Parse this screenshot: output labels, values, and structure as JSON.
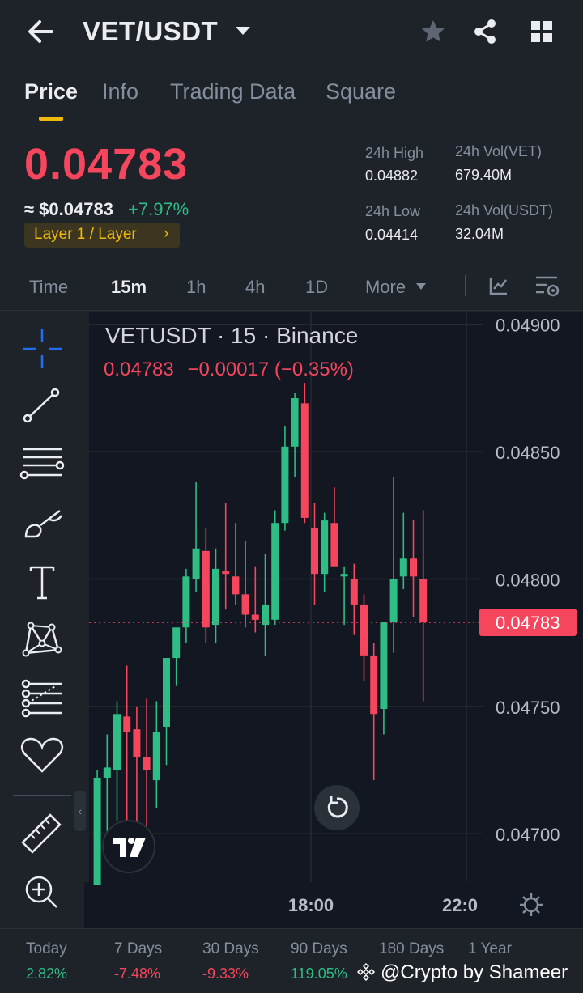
{
  "header": {
    "pair": "VET/USDT",
    "icons": [
      "back-arrow-icon",
      "caret-down-icon",
      "star-icon",
      "share-icon",
      "grid-icon"
    ]
  },
  "tabs": [
    {
      "label": "Price",
      "active": true
    },
    {
      "label": "Info",
      "active": false
    },
    {
      "label": "Trading Data",
      "active": false
    },
    {
      "label": "Square",
      "active": false
    }
  ],
  "ticker": {
    "last_price": "0.04783",
    "usd_price": "≈ $0.04783",
    "change_pct": "+7.97%",
    "tag": "Layer 1 / Layer",
    "tag_chevron": "›",
    "high_label": "24h High",
    "high": "0.04882",
    "low_label": "24h Low",
    "low": "0.04414",
    "vol_base_label": "24h Vol(VET)",
    "vol_base": "679.40M",
    "vol_quote_label": "24h Vol(USDT)",
    "vol_quote": "32.04M"
  },
  "intervals": {
    "items": [
      "Time",
      "15m",
      "1h",
      "4h",
      "1D"
    ],
    "active": "15m",
    "more": "More"
  },
  "chart": {
    "title": "VETUSDT · 15 · Binance",
    "ohlc_last": "0.04783",
    "ohlc_change": "−0.00017 (−0.35%)",
    "current_price_tag": "0.04783",
    "y_labels": [
      "0.04900",
      "0.04850",
      "0.04800",
      "0.04750",
      "0.04700"
    ],
    "x_labels": [
      "18:00",
      "22:0"
    ]
  },
  "chart_data": {
    "type": "candlestick",
    "title": "VETUSDT · 15 · Binance",
    "ylim": [
      0.04681,
      0.04905
    ],
    "y_ticks": [
      0.049,
      0.0485,
      0.048,
      0.0475,
      0.047
    ],
    "x_ticks": [
      "18:00",
      "22:0"
    ],
    "last_price": 0.04783,
    "colors": {
      "up": "#2ebd85",
      "down": "#f6465d"
    },
    "candles": [
      {
        "o": 0.0468,
        "h": 0.04725,
        "l": 0.0468,
        "c": 0.04722
      },
      {
        "o": 0.04722,
        "h": 0.04739,
        "l": 0.04698,
        "c": 0.04726
      },
      {
        "o": 0.04725,
        "h": 0.04752,
        "l": 0.04705,
        "c": 0.04747
      },
      {
        "o": 0.04746,
        "h": 0.04766,
        "l": 0.04694,
        "c": 0.0474
      },
      {
        "o": 0.04741,
        "h": 0.0475,
        "l": 0.04697,
        "c": 0.0473
      },
      {
        "o": 0.0473,
        "h": 0.04753,
        "l": 0.04689,
        "c": 0.04725
      },
      {
        "o": 0.04721,
        "h": 0.04752,
        "l": 0.0471,
        "c": 0.0474
      },
      {
        "o": 0.04742,
        "h": 0.04767,
        "l": 0.04727,
        "c": 0.04769
      },
      {
        "o": 0.04769,
        "h": 0.0478,
        "l": 0.04758,
        "c": 0.04781
      },
      {
        "o": 0.04781,
        "h": 0.04804,
        "l": 0.04775,
        "c": 0.04801
      },
      {
        "o": 0.048,
        "h": 0.04838,
        "l": 0.04795,
        "c": 0.04812
      },
      {
        "o": 0.04811,
        "h": 0.0482,
        "l": 0.04775,
        "c": 0.04781
      },
      {
        "o": 0.04782,
        "h": 0.04812,
        "l": 0.04775,
        "c": 0.04804
      },
      {
        "o": 0.04803,
        "h": 0.0483,
        "l": 0.04788,
        "c": 0.04802
      },
      {
        "o": 0.04801,
        "h": 0.04822,
        "l": 0.0479,
        "c": 0.04794
      },
      {
        "o": 0.04794,
        "h": 0.04815,
        "l": 0.04781,
        "c": 0.04786
      },
      {
        "o": 0.04786,
        "h": 0.04805,
        "l": 0.04779,
        "c": 0.04784
      },
      {
        "o": 0.04782,
        "h": 0.0481,
        "l": 0.0477,
        "c": 0.0479
      },
      {
        "o": 0.04784,
        "h": 0.04827,
        "l": 0.04782,
        "c": 0.04822
      },
      {
        "o": 0.04822,
        "h": 0.0486,
        "l": 0.04819,
        "c": 0.04852
      },
      {
        "o": 0.04852,
        "h": 0.04873,
        "l": 0.0484,
        "c": 0.04871
      },
      {
        "o": 0.04869,
        "h": 0.04877,
        "l": 0.04822,
        "c": 0.04824
      },
      {
        "o": 0.0482,
        "h": 0.0483,
        "l": 0.0479,
        "c": 0.04802
      },
      {
        "o": 0.04802,
        "h": 0.04826,
        "l": 0.04795,
        "c": 0.04823
      },
      {
        "o": 0.04822,
        "h": 0.04836,
        "l": 0.04805,
        "c": 0.04805
      },
      {
        "o": 0.04801,
        "h": 0.04805,
        "l": 0.04782,
        "c": 0.04802
      },
      {
        "o": 0.048,
        "h": 0.04806,
        "l": 0.04778,
        "c": 0.0479
      },
      {
        "o": 0.0479,
        "h": 0.04794,
        "l": 0.0476,
        "c": 0.0477
      },
      {
        "o": 0.0477,
        "h": 0.04775,
        "l": 0.04721,
        "c": 0.04747
      },
      {
        "o": 0.04749,
        "h": 0.04783,
        "l": 0.04739,
        "c": 0.04783
      },
      {
        "o": 0.04783,
        "h": 0.0484,
        "l": 0.04771,
        "c": 0.048
      },
      {
        "o": 0.04801,
        "h": 0.04826,
        "l": 0.04796,
        "c": 0.04808
      },
      {
        "o": 0.04808,
        "h": 0.04823,
        "l": 0.04785,
        "c": 0.04801
      },
      {
        "o": 0.048,
        "h": 0.04827,
        "l": 0.04752,
        "c": 0.04783
      }
    ]
  },
  "toolbar_icons": [
    "crosshair-icon",
    "trend-line-icon",
    "horizontal-lines-icon",
    "brush-icon",
    "text-icon",
    "pattern-icon",
    "fib-icon",
    "heart-icon",
    "ruler-icon",
    "zoom-in-icon"
  ],
  "performance": [
    {
      "label": "Today",
      "value": "2.82%",
      "positive": true
    },
    {
      "label": "7 Days",
      "value": "-7.48%",
      "positive": false
    },
    {
      "label": "30 Days",
      "value": "-9.33%",
      "positive": false
    },
    {
      "label": "90 Days",
      "value": "119.05%",
      "positive": true
    },
    {
      "label": "180 Days",
      "value": "",
      "positive": true
    },
    {
      "label": "1 Year",
      "value": "",
      "positive": true
    }
  ],
  "watermark": "@Crypto by Shameer",
  "logo_text": "TV"
}
